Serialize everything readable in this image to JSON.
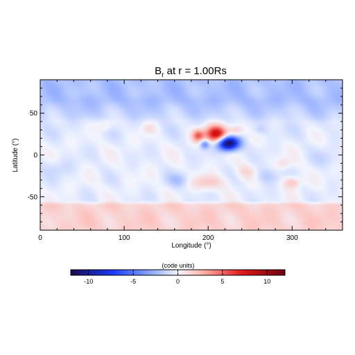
{
  "chart_data": {
    "type": "heatmap",
    "title_main": "B",
    "title_sub": "r",
    "title_rest": " at r = 1.00Rs",
    "xlabel": "Longitude (°)",
    "ylabel": "Latitude (°)",
    "xlim": [
      0,
      360
    ],
    "ylim": [
      -90,
      90
    ],
    "x_ticks": [
      0,
      100,
      200,
      300
    ],
    "y_ticks": [
      -50,
      0,
      50
    ],
    "colorbar": {
      "label": "(code units)",
      "range": [
        -12,
        12
      ],
      "ticks": [
        -10,
        -5,
        0,
        5,
        10
      ],
      "colors": {
        "min": "#1a0a4d",
        "neg": "#1a3bff",
        "neg_light": "#9ab3ff",
        "zero": "#f2f5ff",
        "pos_light": "#ffb8b0",
        "pos": "#e01818",
        "max": "#6e0010"
      }
    },
    "field": {
      "description_of_structure": "smooth background plus localized flux spots (lon, lat in degrees; amp in code units)",
      "spots": [
        {
          "lon": 210,
          "lat": 25,
          "amp": 9,
          "sx": 9,
          "sy": 7
        },
        {
          "lon": 224,
          "lat": 14,
          "amp": -12,
          "sx": 9,
          "sy": 6
        },
        {
          "lon": 188,
          "lat": 23,
          "amp": 5,
          "sx": 5,
          "sy": 5
        },
        {
          "lon": 196,
          "lat": 13,
          "amp": -4,
          "sx": 4,
          "sy": 4
        },
        {
          "lon": 233,
          "lat": 29,
          "amp": 2.5,
          "sx": 6,
          "sy": 5
        },
        {
          "lon": 77,
          "lat": 35,
          "amp": 1.2,
          "sx": 8,
          "sy": 5
        },
        {
          "lon": 130,
          "lat": 32,
          "amp": 1.2,
          "sx": 7,
          "sy": 5
        },
        {
          "lon": 245,
          "lat": -20,
          "amp": 1.5,
          "sx": 8,
          "sy": 6
        },
        {
          "lon": 200,
          "lat": -33,
          "amp": 2.0,
          "sx": 14,
          "sy": 6
        },
        {
          "lon": 300,
          "lat": -33,
          "amp": 2.5,
          "sx": 7,
          "sy": 5
        },
        {
          "lon": 290,
          "lat": -10,
          "amp": 1.2,
          "sx": 6,
          "sy": 5
        },
        {
          "lon": 165,
          "lat": -30,
          "amp": -1.5,
          "sx": 10,
          "sy": 6
        },
        {
          "lon": 270,
          "lat": -25,
          "amp": -1.5,
          "sx": 10,
          "sy": 7
        },
        {
          "lon": 20,
          "lat": -15,
          "amp": -0.8,
          "sx": 14,
          "sy": 8
        },
        {
          "lon": 340,
          "lat": -5,
          "amp": -0.8,
          "sx": 10,
          "sy": 8
        },
        {
          "lon": 262,
          "lat": 30,
          "amp": -1.0,
          "sx": 6,
          "sy": 4
        }
      ],
      "north_polar": -1.8,
      "south_polar": 1.8
    }
  }
}
